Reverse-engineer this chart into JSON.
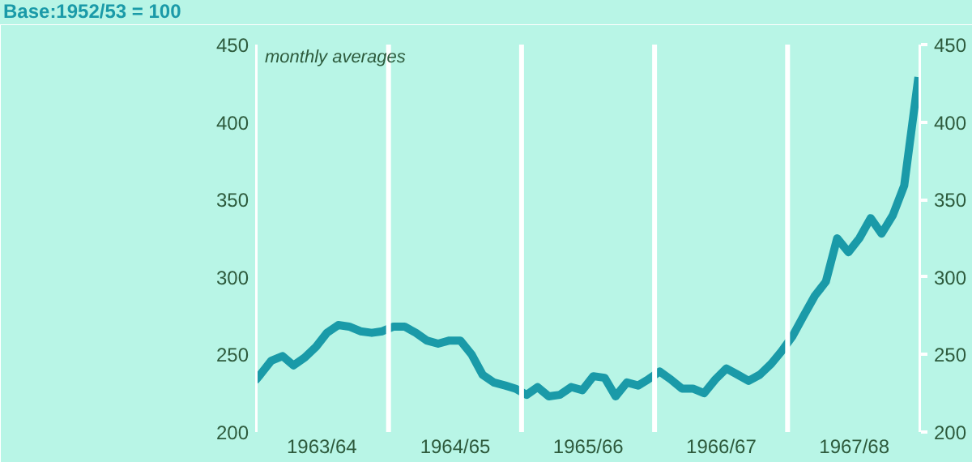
{
  "chart_data": {
    "type": "line",
    "ylabel": "Base:1952/53 = 100",
    "annotations": [
      "monthly averages"
    ],
    "x": [
      "1963-04-01",
      "1963-04-15",
      "1963-05-15",
      "1963-06-15",
      "1963-07-15",
      "1963-08-15",
      "1963-09-15",
      "1963-10-15",
      "1963-11-15",
      "1963-12-15",
      "1964-01-15",
      "1964-02-15",
      "1964-03-15",
      "1964-04-15",
      "1964-05-15",
      "1964-06-15",
      "1964-07-15",
      "1964-08-15",
      "1964-09-15",
      "1964-10-15",
      "1964-11-15",
      "1964-12-15",
      "1965-01-15",
      "1965-02-15",
      "1965-03-15",
      "1965-04-15",
      "1965-05-15",
      "1965-06-15",
      "1965-07-15",
      "1965-08-15",
      "1965-09-15",
      "1965-10-15",
      "1965-11-15",
      "1965-12-15",
      "1966-01-15",
      "1966-02-15",
      "1966-03-15",
      "1966-04-15",
      "1966-05-15",
      "1966-06-15",
      "1966-07-15",
      "1966-08-15",
      "1966-09-15",
      "1966-10-15",
      "1966-11-15",
      "1966-12-15",
      "1967-01-15",
      "1967-02-15",
      "1967-03-15",
      "1967-04-15",
      "1967-05-15",
      "1967-06-15",
      "1967-07-15",
      "1967-08-15",
      "1967-09-15",
      "1967-10-15",
      "1967-11-15",
      "1967-12-15",
      "1968-01-15",
      "1968-02-15",
      "1968-03-25"
    ],
    "series": [
      {
        "color": "#1a9aa8",
        "values": [
          233,
          237,
          246,
          249,
          243,
          248,
          255,
          264,
          269,
          268,
          265,
          264,
          265,
          268,
          268,
          264,
          259,
          257,
          259,
          259,
          250,
          237,
          232,
          230,
          228,
          224,
          229,
          223,
          224,
          229,
          227,
          236,
          235,
          223,
          232,
          230,
          234,
          239,
          234,
          228,
          228,
          225,
          234,
          241,
          237,
          233,
          237,
          244,
          252,
          262,
          275,
          288,
          297,
          325,
          316,
          325,
          338,
          328,
          340,
          359,
          429
        ]
      }
    ],
    "xlim": [
      "1963-04-01",
      "1968-04-01"
    ],
    "xticks": [
      {
        "value": "1963-10-01",
        "label": "1963/64"
      },
      {
        "value": "1964-10-01",
        "label": "1964/65"
      },
      {
        "value": "1965-10-01",
        "label": "1965/66"
      },
      {
        "value": "1966-10-01",
        "label": "1966/67"
      },
      {
        "value": "1967-10-01",
        "label": "1967/68"
      }
    ],
    "ylim": [
      200,
      450
    ],
    "yticks": [
      200,
      250,
      300,
      350,
      400,
      450
    ],
    "y2lim": [
      200,
      450
    ],
    "y2ticks": [
      200,
      250,
      300,
      350,
      400,
      450
    ],
    "ref_lines": [
      {
        "axis": "x",
        "value": "1963-04-01",
        "color": "#ffffff"
      },
      {
        "axis": "x",
        "value": "1964-04-01",
        "color": "#ffffff"
      },
      {
        "axis": "x",
        "value": "1965-04-01",
        "color": "#ffffff"
      },
      {
        "axis": "x",
        "value": "1966-04-01",
        "color": "#ffffff"
      },
      {
        "axis": "x",
        "value": "1967-04-01",
        "color": "#ffffff"
      },
      {
        "axis": "x",
        "value": "1968-04-01",
        "color": "#ffffff"
      }
    ],
    "grid": false
  }
}
